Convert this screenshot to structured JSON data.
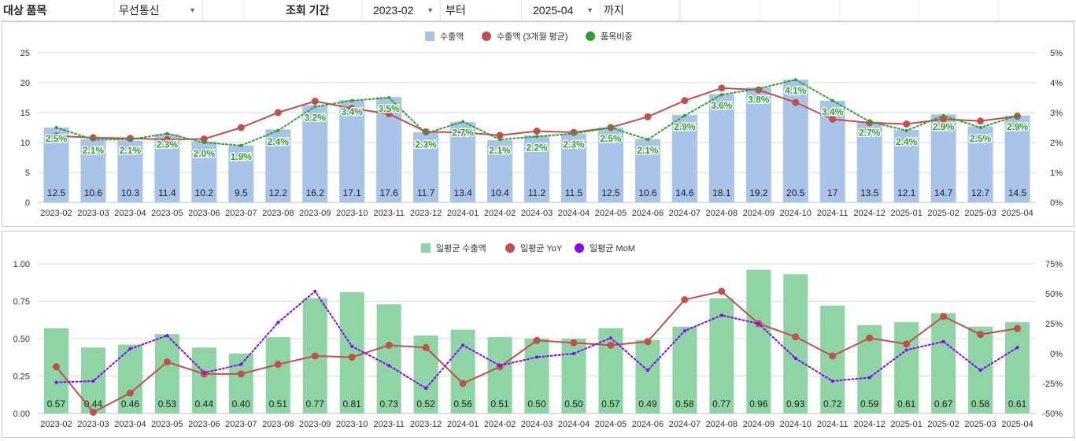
{
  "filter": {
    "item_label": "대상 품목",
    "item_value": "무선통신",
    "period_label": "조회 기간",
    "start_value": "2023-02",
    "from_label": "부터",
    "end_value": "2025-04",
    "to_label": "까지"
  },
  "chart_data": [
    {
      "type": "bar",
      "categories": [
        "2023-02",
        "2023-03",
        "2023-04",
        "2023-05",
        "2023-06",
        "2023-07",
        "2023-08",
        "2023-09",
        "2023-10",
        "2023-11",
        "2023-12",
        "2024-01",
        "2024-02",
        "2024-03",
        "2024-04",
        "2024-05",
        "2024-06",
        "2024-07",
        "2024-08",
        "2024-09",
        "2024-10",
        "2024-11",
        "2024-12",
        "2025-01",
        "2025-02",
        "2025-03",
        "2025-04"
      ],
      "series": [
        {
          "name": "수출액",
          "type": "bar",
          "axis": "left",
          "color": "#a9c4e8",
          "values": [
            12.5,
            10.6,
            10.3,
            11.4,
            10.2,
            9.5,
            12.2,
            16.2,
            17.1,
            17.6,
            11.7,
            13.4,
            10.4,
            11.2,
            11.5,
            12.5,
            10.6,
            14.6,
            18.1,
            19.2,
            20.5,
            17,
            13.5,
            12.1,
            14.7,
            12.7,
            14.5
          ],
          "labels": [
            "12.5",
            "10.6",
            "10.3",
            "11.4",
            "10.2",
            "9.5",
            "12.2",
            "16.2",
            "17.1",
            "17.6",
            "11.7",
            "13.4",
            "10.4",
            "11.2",
            "11.5",
            "12.5",
            "10.6",
            "14.6",
            "18.1",
            "19.2",
            "20.5",
            "17",
            "13.5",
            "12.1",
            "14.7",
            "12.7",
            "14.5"
          ]
        },
        {
          "name": "수출액 (3개월 평균)",
          "type": "line",
          "axis": "left",
          "color": "#c0504d",
          "values": [
            11.1,
            10.8,
            10.7,
            10.5,
            10.6,
            12.5,
            15.0,
            16.9,
            15.7,
            14.8,
            11.8,
            11.7,
            11.2,
            11.9,
            11.7,
            12.5,
            14.3,
            17.0,
            19.1,
            18.8,
            16.7,
            13.9,
            13.3,
            13.1,
            13.9,
            13.6,
            14.4
          ]
        },
        {
          "name": "품목비중",
          "type": "line",
          "axis": "right",
          "color": "#2ca02c",
          "dash": "dotted",
          "values": [
            2.5,
            2.1,
            2.1,
            2.3,
            2.0,
            1.9,
            2.4,
            3.2,
            3.4,
            3.5,
            2.3,
            2.7,
            2.1,
            2.2,
            2.3,
            2.5,
            2.1,
            2.9,
            3.6,
            3.8,
            4.1,
            3.4,
            2.7,
            2.4,
            2.9,
            2.5,
            2.9
          ],
          "labels": [
            "2.5%",
            "2.1%",
            "2.1%",
            "2.3%",
            "2.0%",
            "1.9%",
            "2.4%",
            "3.2%",
            "3.4%",
            "3.5%",
            "2.3%",
            "2.7%",
            "2.1%",
            "2.2%",
            "2.3%",
            "2.5%",
            "2.1%",
            "2.9%",
            "3.6%",
            "3.8%",
            "4.1%",
            "3.4%",
            "2.7%",
            "2.4%",
            "2.9%",
            "2.5%",
            "2.9%"
          ]
        }
      ],
      "ylim": [
        0,
        25
      ],
      "yticks": [
        "0",
        "5",
        "10",
        "15",
        "20",
        "25"
      ],
      "y2lim": [
        0,
        5
      ],
      "y2ticks": [
        "0%",
        "1%",
        "2%",
        "3%",
        "4%",
        "5%"
      ],
      "grid": true,
      "legend": "top-center"
    },
    {
      "type": "bar",
      "categories": [
        "2023-02",
        "2023-03",
        "2023-04",
        "2023-05",
        "2023-06",
        "2023-07",
        "2023-08",
        "2023-09",
        "2023-10",
        "2023-11",
        "2023-12",
        "2024-01",
        "2024-02",
        "2024-03",
        "2024-04",
        "2024-05",
        "2024-06",
        "2024-07",
        "2024-08",
        "2024-09",
        "2024-10",
        "2024-11",
        "2024-12",
        "2025-01",
        "2025-02",
        "2025-03",
        "2025-04"
      ],
      "series": [
        {
          "name": "일평균 수출액",
          "type": "bar",
          "axis": "left",
          "color": "#8fd4a4",
          "values": [
            0.57,
            0.44,
            0.46,
            0.53,
            0.44,
            0.4,
            0.51,
            0.77,
            0.81,
            0.73,
            0.52,
            0.56,
            0.51,
            0.5,
            0.5,
            0.57,
            0.49,
            0.58,
            0.77,
            0.96,
            0.93,
            0.72,
            0.59,
            0.61,
            0.67,
            0.58,
            0.61
          ],
          "labels": [
            "0.57",
            "0.44",
            "0.46",
            "0.53",
            "0.44",
            "0.40",
            "0.51",
            "0.77",
            "0.81",
            "0.73",
            "0.52",
            "0.56",
            "0.51",
            "0.50",
            "0.50",
            "0.57",
            "0.49",
            "0.58",
            "0.77",
            "0.96",
            "0.93",
            "0.72",
            "0.59",
            "0.61",
            "0.67",
            "0.58",
            "0.61"
          ]
        },
        {
          "name": "일평균 YoY",
          "type": "line",
          "axis": "right",
          "color": "#c0504d",
          "values": [
            -11,
            -49,
            -33,
            -7,
            -17,
            -17,
            -9,
            -2,
            -3,
            7,
            5,
            -25,
            -11,
            11,
            9,
            7,
            10,
            45,
            52,
            25,
            14,
            -2,
            13,
            8,
            31,
            16,
            21
          ]
        },
        {
          "name": "일평균 MoM",
          "type": "line",
          "axis": "right",
          "color": "#8b00ff",
          "dash": "dotted",
          "values": [
            -24,
            -23,
            4,
            15,
            -16,
            -9,
            26,
            52,
            6,
            -10,
            -29,
            7,
            -10,
            -3,
            0,
            13,
            -14,
            19,
            32,
            25,
            -4,
            -23,
            -20,
            3,
            10,
            -14,
            5
          ]
        }
      ],
      "ylim": [
        0,
        1
      ],
      "yticks": [
        "0.00",
        "0.25",
        "0.50",
        "0.75",
        "1.00"
      ],
      "y2lim": [
        -50,
        75
      ],
      "y2ticks": [
        "-50%",
        "-25%",
        "0%",
        "25%",
        "50%",
        "75%"
      ],
      "grid": true,
      "legend": "top-center"
    }
  ]
}
